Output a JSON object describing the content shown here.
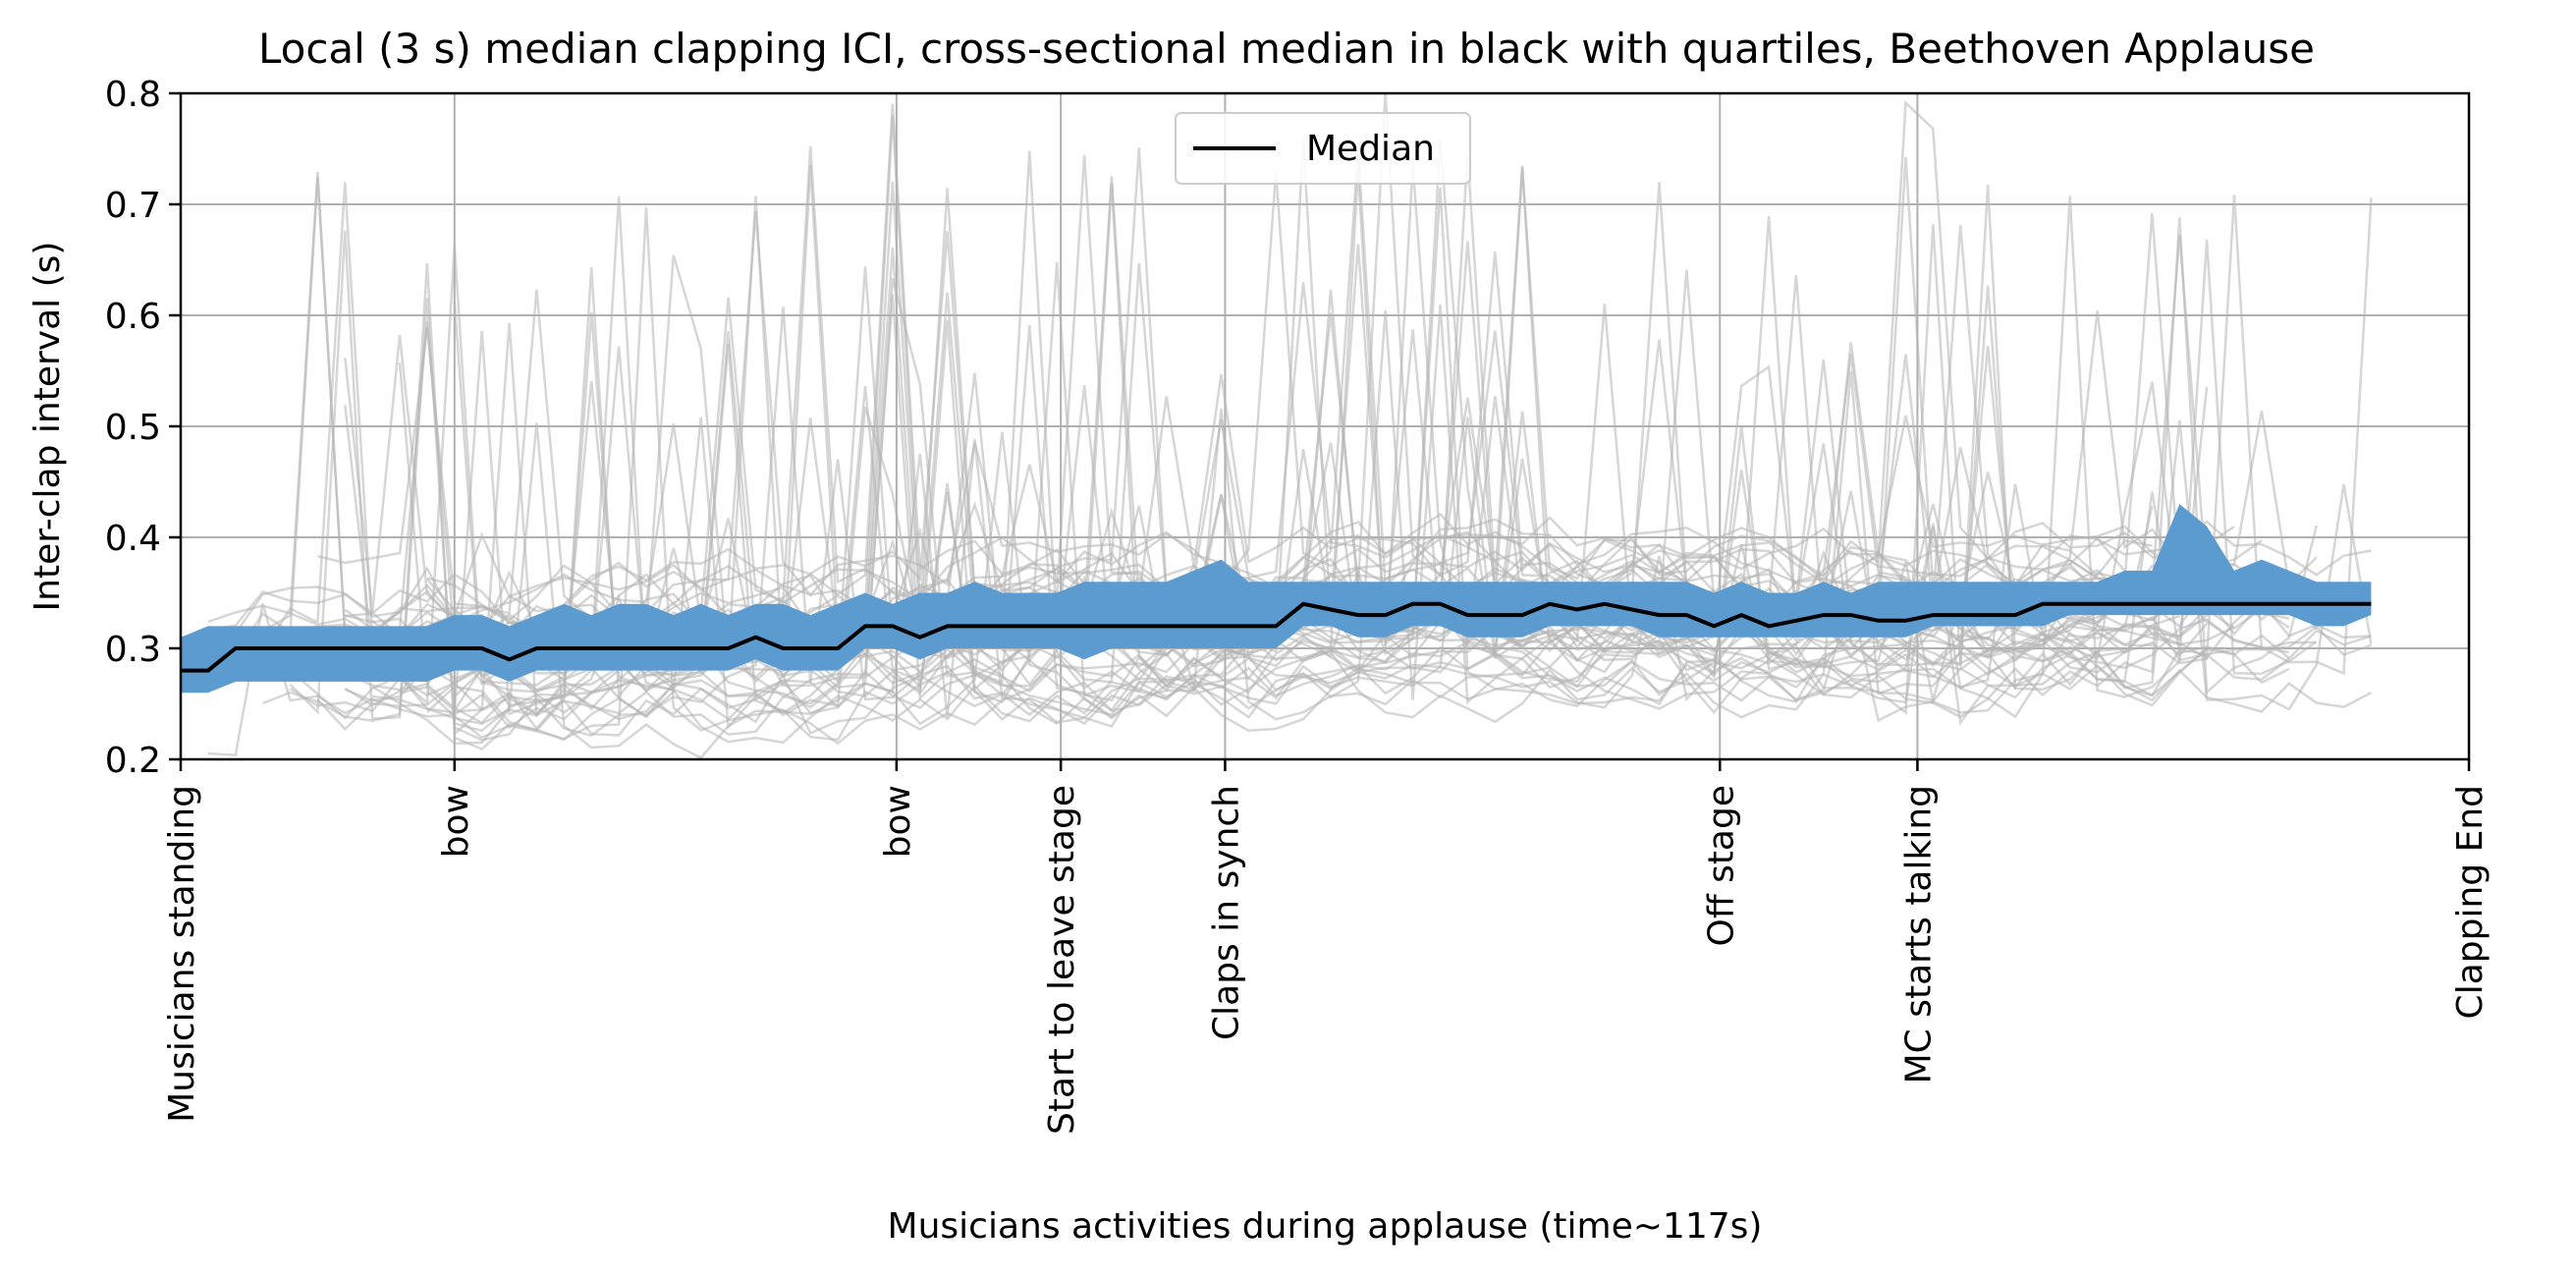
{
  "chart_data": {
    "type": "line",
    "title": "Local (3 s) median clapping ICI, cross-sectional median in black with quartiles, Beethoven Applause",
    "xlabel": "Musicians activities during applause (time~117s)",
    "ylabel": "Inter-clap interval (s)",
    "xlim": [
      0,
      117
    ],
    "ylim": [
      0.2,
      0.8
    ],
    "yticks": [
      0.2,
      0.3,
      0.4,
      0.5,
      0.6,
      0.7,
      0.8
    ],
    "ytick_labels": [
      "0.2",
      "0.3",
      "0.4",
      "0.5",
      "0.6",
      "0.7",
      "0.8"
    ],
    "grid": true,
    "legend_position": "upper center",
    "events": [
      {
        "label": "Musicians standing",
        "t": 0
      },
      {
        "label": "bow",
        "t": 14
      },
      {
        "label": "bow",
        "t": 36.6
      },
      {
        "label": "Start to leave stage",
        "t": 45
      },
      {
        "label": "Claps in synch",
        "t": 53.4
      },
      {
        "label": "Off stage",
        "t": 78.7
      },
      {
        "label": "MC starts talking",
        "t": 88.8
      },
      {
        "label": "Clapping End",
        "t": 117
      }
    ],
    "median": {
      "name": "Median",
      "color": "#000000",
      "x": [
        0,
        1.4,
        2.8,
        4.2,
        5.6,
        7,
        8.4,
        9.8,
        11.2,
        12.6,
        14,
        15.4,
        16.8,
        18.2,
        19.6,
        21,
        22.4,
        23.8,
        25.2,
        26.6,
        28,
        29.4,
        30.8,
        32.2,
        33.6,
        35,
        36.4,
        37.8,
        39.2,
        40.6,
        42,
        43.4,
        44.8,
        46.2,
        47.6,
        49,
        50.4,
        51.8,
        53.2,
        54.6,
        56,
        57.4,
        58.8,
        60.2,
        61.6,
        63,
        64.4,
        65.8,
        67.2,
        68.6,
        70,
        71.4,
        72.8,
        74.2,
        75.6,
        77,
        78.4,
        79.8,
        81.2,
        82.6,
        84,
        85.4,
        86.8,
        88.2,
        89.6,
        91,
        92.4,
        93.8,
        95.2,
        96.6,
        98,
        99.4,
        100.8,
        102.2,
        103.6,
        105,
        106.4,
        107.8,
        109.2,
        110.6,
        112
      ],
      "y": [
        0.28,
        0.28,
        0.3,
        0.3,
        0.3,
        0.3,
        0.3,
        0.3,
        0.3,
        0.3,
        0.3,
        0.3,
        0.29,
        0.3,
        0.3,
        0.3,
        0.3,
        0.3,
        0.3,
        0.3,
        0.3,
        0.31,
        0.3,
        0.3,
        0.3,
        0.32,
        0.32,
        0.31,
        0.32,
        0.32,
        0.32,
        0.32,
        0.32,
        0.32,
        0.32,
        0.32,
        0.32,
        0.32,
        0.32,
        0.32,
        0.32,
        0.34,
        0.335,
        0.33,
        0.33,
        0.34,
        0.34,
        0.33,
        0.33,
        0.33,
        0.34,
        0.335,
        0.34,
        0.335,
        0.33,
        0.33,
        0.32,
        0.33,
        0.32,
        0.325,
        0.33,
        0.33,
        0.325,
        0.325,
        0.33,
        0.33,
        0.33,
        0.33,
        0.34,
        0.34,
        0.34,
        0.34,
        0.34,
        0.34,
        0.34,
        0.34,
        0.34,
        0.34,
        0.34,
        0.34,
        0.34
      ]
    },
    "quartile_band": {
      "color": "#5b9bd0",
      "x": [
        0,
        1.4,
        2.8,
        4.2,
        5.6,
        7,
        8.4,
        9.8,
        11.2,
        12.6,
        14,
        15.4,
        16.8,
        18.2,
        19.6,
        21,
        22.4,
        23.8,
        25.2,
        26.6,
        28,
        29.4,
        30.8,
        32.2,
        33.6,
        35,
        36.4,
        37.8,
        39.2,
        40.6,
        42,
        43.4,
        44.8,
        46.2,
        47.6,
        49,
        50.4,
        51.8,
        53.2,
        54.6,
        56,
        57.4,
        58.8,
        60.2,
        61.6,
        63,
        64.4,
        65.8,
        67.2,
        68.6,
        70,
        71.4,
        72.8,
        74.2,
        75.6,
        77,
        78.4,
        79.8,
        81.2,
        82.6,
        84,
        85.4,
        86.8,
        88.2,
        89.6,
        91,
        92.4,
        93.8,
        95.2,
        96.6,
        98,
        99.4,
        100.8,
        102.2,
        103.6,
        105,
        106.4,
        107.8,
        109.2,
        110.6,
        112
      ],
      "q1": [
        0.26,
        0.26,
        0.27,
        0.27,
        0.27,
        0.27,
        0.27,
        0.27,
        0.27,
        0.27,
        0.28,
        0.28,
        0.27,
        0.28,
        0.28,
        0.28,
        0.28,
        0.28,
        0.28,
        0.28,
        0.28,
        0.29,
        0.28,
        0.28,
        0.28,
        0.3,
        0.3,
        0.29,
        0.3,
        0.3,
        0.3,
        0.3,
        0.3,
        0.29,
        0.3,
        0.3,
        0.3,
        0.3,
        0.3,
        0.3,
        0.3,
        0.32,
        0.32,
        0.31,
        0.31,
        0.32,
        0.32,
        0.31,
        0.31,
        0.31,
        0.32,
        0.32,
        0.32,
        0.32,
        0.31,
        0.31,
        0.31,
        0.31,
        0.31,
        0.31,
        0.31,
        0.31,
        0.31,
        0.31,
        0.32,
        0.32,
        0.32,
        0.32,
        0.32,
        0.33,
        0.33,
        0.33,
        0.33,
        0.33,
        0.33,
        0.33,
        0.33,
        0.33,
        0.32,
        0.32,
        0.33
      ],
      "q3": [
        0.31,
        0.32,
        0.32,
        0.32,
        0.32,
        0.32,
        0.32,
        0.32,
        0.32,
        0.32,
        0.33,
        0.33,
        0.32,
        0.33,
        0.34,
        0.33,
        0.34,
        0.34,
        0.33,
        0.34,
        0.33,
        0.34,
        0.34,
        0.33,
        0.34,
        0.35,
        0.34,
        0.35,
        0.35,
        0.36,
        0.35,
        0.35,
        0.35,
        0.36,
        0.36,
        0.36,
        0.36,
        0.37,
        0.38,
        0.36,
        0.36,
        0.36,
        0.36,
        0.36,
        0.36,
        0.36,
        0.36,
        0.36,
        0.36,
        0.36,
        0.36,
        0.36,
        0.36,
        0.36,
        0.36,
        0.36,
        0.35,
        0.36,
        0.35,
        0.35,
        0.36,
        0.35,
        0.36,
        0.36,
        0.36,
        0.36,
        0.36,
        0.36,
        0.36,
        0.36,
        0.36,
        0.37,
        0.37,
        0.43,
        0.41,
        0.37,
        0.38,
        0.37,
        0.36,
        0.36,
        0.36
      ]
    },
    "individual_series_color": "#b4b4b4"
  }
}
